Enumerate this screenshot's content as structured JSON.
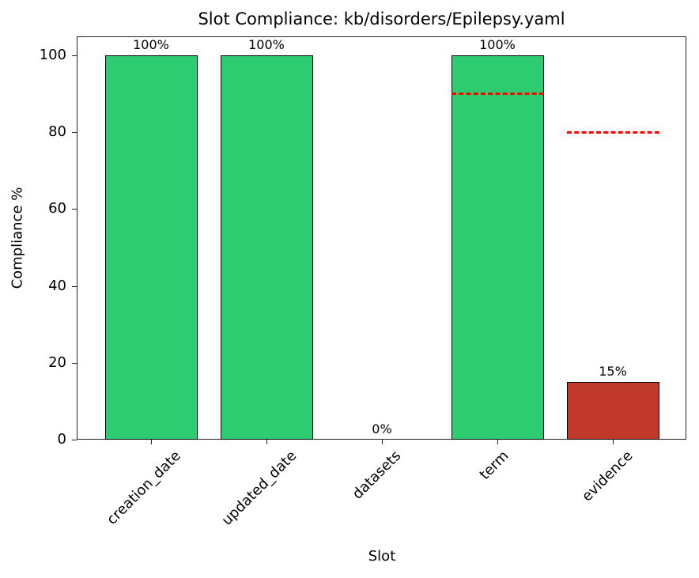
{
  "chart_data": {
    "type": "bar",
    "title": "Slot Compliance: kb/disorders/Epilepsy.yaml",
    "xlabel": "Slot",
    "ylabel": "Compliance %",
    "ylim": [
      0,
      105
    ],
    "yticks": [
      0,
      20,
      40,
      60,
      80,
      100
    ],
    "categories": [
      "creation_date",
      "updated_date",
      "datasets",
      "term",
      "evidence"
    ],
    "values": [
      100,
      100,
      0,
      100,
      15
    ],
    "value_labels": [
      "100%",
      "100%",
      "0%",
      "100%",
      "15%"
    ],
    "bar_colors": [
      "#2ecc71",
      "#2ecc71",
      "#2ecc71",
      "#2ecc71",
      "#c0392b"
    ],
    "targets": [
      {
        "category": "term",
        "value": 90,
        "style": "dashed",
        "color": "#ff0000"
      },
      {
        "category": "evidence",
        "value": 80,
        "style": "dashed",
        "color": "#ff0000"
      }
    ],
    "grid": false,
    "legend": null
  },
  "colors": {
    "pass": "#2ecc71",
    "fail": "#c0392b",
    "target_line": "#ff0000",
    "axis": "#222222"
  }
}
